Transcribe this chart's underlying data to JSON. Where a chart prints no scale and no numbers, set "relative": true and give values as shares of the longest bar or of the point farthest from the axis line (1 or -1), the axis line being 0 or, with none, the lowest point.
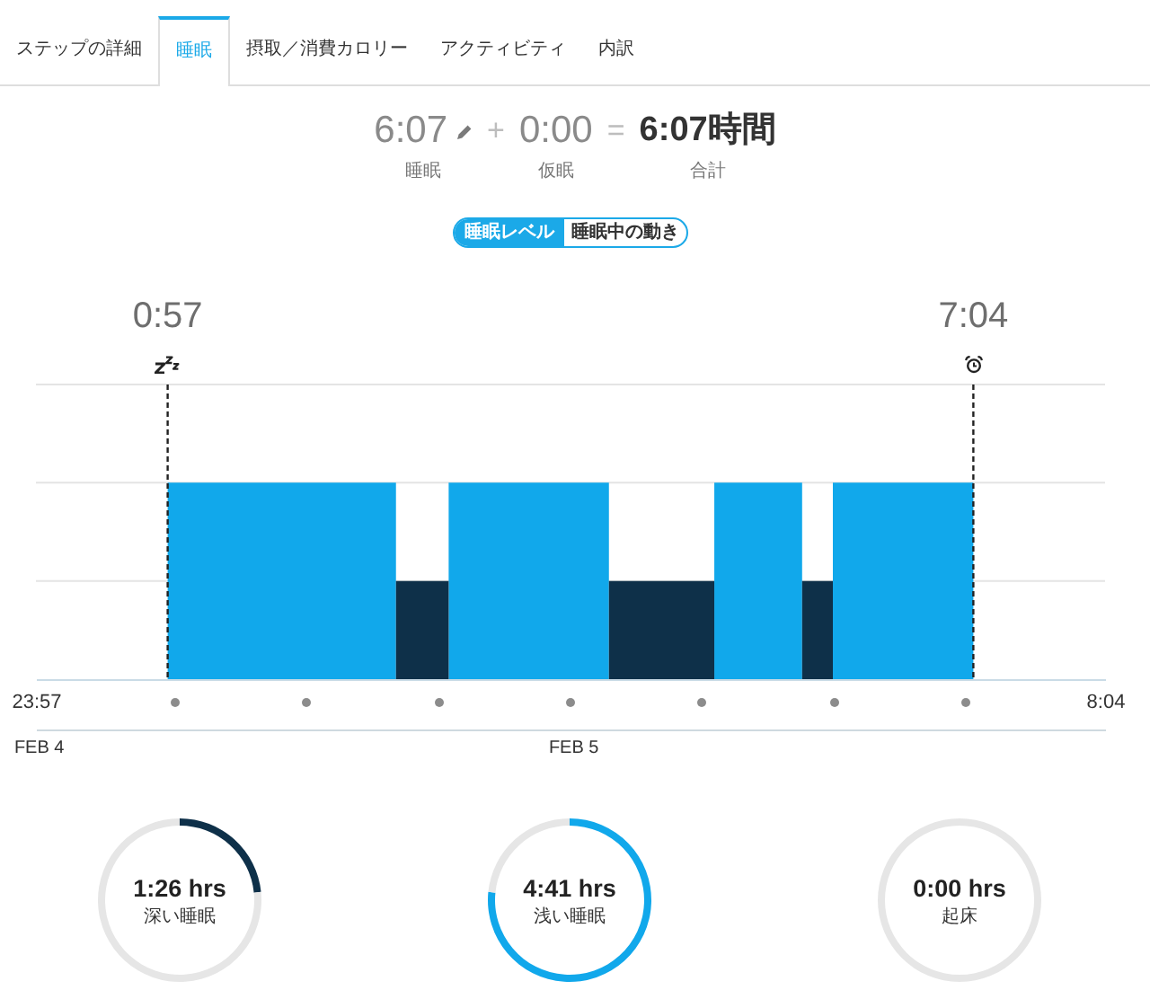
{
  "chart_data": [
    {
      "type": "other",
      "annotations": [
        "ステップの詳細",
        "睡眠",
        "摂取／消費カロリー",
        "アクティビティ",
        "内訳"
      ]
    },
    {
      "type": "other",
      "annotations": [
        "6:07",
        "睡眠",
        "+",
        "0:00",
        "仮眠",
        "=",
        "6:07時間",
        "合計"
      ]
    },
    {
      "type": "other",
      "annotations": [
        "睡眠レベル",
        "睡眠中の動き"
      ]
    },
    {
      "type": "area",
      "relative": true,
      "x": [
        "--02-05T00:57",
        "--02-05T02:41",
        "--02-05T02:41",
        "--02-05T03:05",
        "--02-05T03:05",
        "--02-05T04:18",
        "--02-05T04:18",
        "--02-05T05:06",
        "--02-05T05:06",
        "--02-05T05:46",
        "--02-05T05:46",
        "--02-05T06:00",
        "--02-05T06:00",
        "--02-05T07:04"
      ],
      "series": [
        {
          "color": "#11a8eb",
          "values": [
            1,
            1,
            0,
            0,
            1,
            1,
            0,
            0,
            1,
            1,
            0,
            0,
            1,
            1
          ]
        },
        {
          "color": "#0e3049",
          "values": [
            0,
            0,
            0.5,
            0.5,
            0,
            0,
            0.5,
            0.5,
            0,
            0,
            0.5,
            0.5,
            0,
            0
          ]
        }
      ],
      "xlim": [
        "--02-04T23:57",
        "--02-05T08:04"
      ],
      "xticks": [
        {
          "value": "--02-04T23:57",
          "label": "23:57"
        },
        {
          "value": "--02-05T01:00",
          "label": null
        },
        {
          "value": "--02-05T02:00",
          "label": null
        },
        {
          "value": "--02-05T03:00",
          "label": null
        },
        {
          "value": "--02-05T04:00",
          "label": null
        },
        {
          "value": "--02-05T05:00",
          "label": null
        },
        {
          "value": "--02-05T06:00",
          "label": null
        },
        {
          "value": "--02-05T07:00",
          "label": null
        },
        {
          "value": "--02-05T08:04",
          "label": "8:04"
        }
      ],
      "ref_lines": [
        {
          "axis": "x",
          "value": "--02-05T00:57",
          "label": "0:57",
          "color": "#222222",
          "line_style": "dashed"
        },
        {
          "axis": "x",
          "value": "--02-05T07:04",
          "label": "7:04",
          "color": "#222222",
          "line_style": "dashed"
        },
        {
          "axis": "y",
          "value": 0.5,
          "color": "#e4e4e4"
        },
        {
          "axis": "y",
          "value": 1,
          "color": "#e4e4e4"
        },
        {
          "axis": "y",
          "value": 1.5,
          "color": "#e4e4e4"
        }
      ],
      "annotations": [
        "FEB 4",
        "FEB 5"
      ]
    },
    {
      "type": "donut",
      "title": "1:26 hrs",
      "subtitle": "深い睡眠",
      "categories": [
        null,
        null
      ],
      "values": [
        23.4,
        76.6
      ],
      "colors": [
        "#0e3049",
        "#e6e6e6"
      ]
    },
    {
      "type": "donut",
      "title": "4:41 hrs",
      "subtitle": "浅い睡眠",
      "categories": [
        null,
        null
      ],
      "values": [
        76.6,
        23.4
      ],
      "colors": [
        "#11a8eb",
        "#e6e6e6"
      ]
    },
    {
      "type": "donut",
      "title": "0:00 hrs",
      "subtitle": "起床",
      "categories": [
        null,
        null
      ],
      "values": [
        0,
        100
      ],
      "colors": [
        "#e6e6e6",
        "#e6e6e6"
      ]
    }
  ]
}
